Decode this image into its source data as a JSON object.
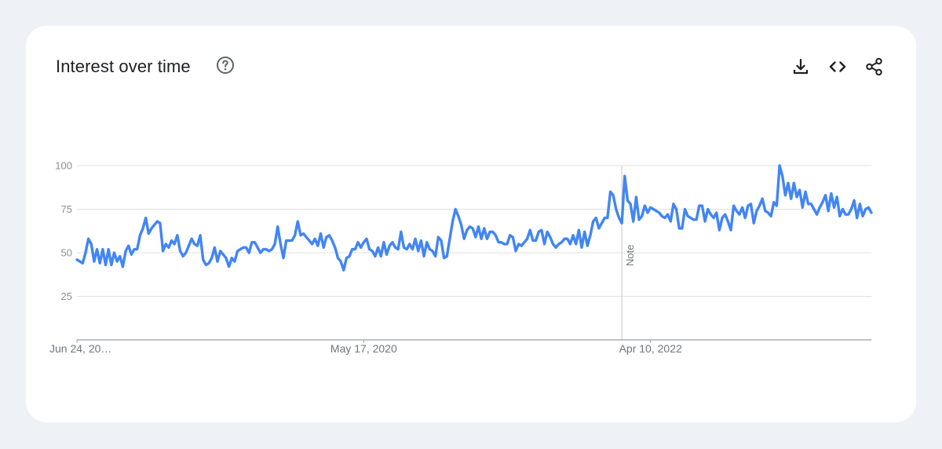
{
  "card": {
    "title": "Interest over time"
  },
  "icons": {
    "help": "help-circle-icon",
    "download": "download-icon",
    "embed": "embed-code-icon",
    "share": "share-icon"
  },
  "colors": {
    "line": "#4285f4",
    "grid": "#e0e0e0",
    "axis": "#9aa0a6",
    "note_line": "#c8c8c8",
    "background": "#eef2f7",
    "card": "#ffffff"
  },
  "chart_data": {
    "type": "line",
    "title": "Interest over time",
    "xlabel": "",
    "ylabel": "",
    "ylim": [
      0,
      100
    ],
    "yticks": [
      25,
      50,
      75,
      100
    ],
    "x_tick_labels": [
      "Jun 24, 20…",
      "May 17, 2020",
      "Apr 10, 2022"
    ],
    "x_tick_index": [
      0,
      100,
      200
    ],
    "grid": true,
    "legend": "none",
    "annotations": [
      {
        "text": "Note",
        "index": 190
      }
    ],
    "series": [
      {
        "values": [
          46,
          45,
          44,
          50,
          58,
          55,
          45,
          52,
          44,
          52,
          43,
          52,
          43,
          50,
          45,
          48,
          42,
          51,
          54,
          49,
          52,
          52,
          60,
          64,
          70,
          61,
          64,
          66,
          68,
          67,
          51,
          55,
          53,
          57,
          55,
          60,
          51,
          48,
          50,
          54,
          58,
          55,
          54,
          60,
          46,
          43,
          44,
          47,
          53,
          45,
          51,
          49,
          47,
          42,
          47,
          45,
          51,
          52,
          53,
          53,
          50,
          56,
          56,
          53,
          50,
          52,
          52,
          51,
          52,
          55,
          65,
          55,
          47,
          57,
          57,
          57,
          60,
          68,
          60,
          61,
          59,
          57,
          55,
          58,
          54,
          61,
          53,
          59,
          60,
          57,
          53,
          47,
          45,
          40,
          47,
          48,
          52,
          52,
          56,
          53,
          56,
          58,
          52,
          51,
          48,
          53,
          48,
          56,
          49,
          54,
          56,
          53,
          52,
          62,
          53,
          52,
          55,
          52,
          58,
          51,
          57,
          48,
          56,
          52,
          51,
          48,
          59,
          57,
          47,
          48,
          58,
          68,
          75,
          71,
          66,
          58,
          63,
          65,
          64,
          59,
          65,
          58,
          64,
          58,
          62,
          62,
          60,
          56,
          56,
          55,
          55,
          60,
          59,
          51,
          55,
          54,
          56,
          58,
          63,
          57,
          57,
          62,
          63,
          55,
          62,
          59,
          55,
          53,
          55,
          56,
          58,
          58,
          55,
          60,
          55,
          63,
          53,
          62,
          54,
          60,
          68,
          70,
          64,
          67,
          70,
          70,
          85,
          83,
          75,
          70,
          67,
          94,
          80,
          78,
          68,
          82,
          69,
          71,
          77,
          73,
          76,
          75,
          74,
          73,
          71,
          70,
          72,
          68,
          78,
          75,
          64,
          64,
          75,
          71,
          70,
          69,
          69,
          77,
          77,
          68,
          75,
          72,
          70,
          73,
          63,
          70,
          72,
          68,
          63,
          77,
          74,
          72,
          76,
          70,
          77,
          78,
          67,
          74,
          77,
          81,
          74,
          73,
          71,
          79,
          77,
          100,
          94,
          83,
          90,
          81,
          90,
          82,
          86,
          76,
          85,
          78,
          78,
          75,
          72,
          76,
          79,
          83,
          74,
          84,
          76,
          82,
          71,
          75,
          72,
          72,
          75,
          80,
          70,
          78,
          71,
          75,
          76,
          73
        ]
      }
    ]
  }
}
